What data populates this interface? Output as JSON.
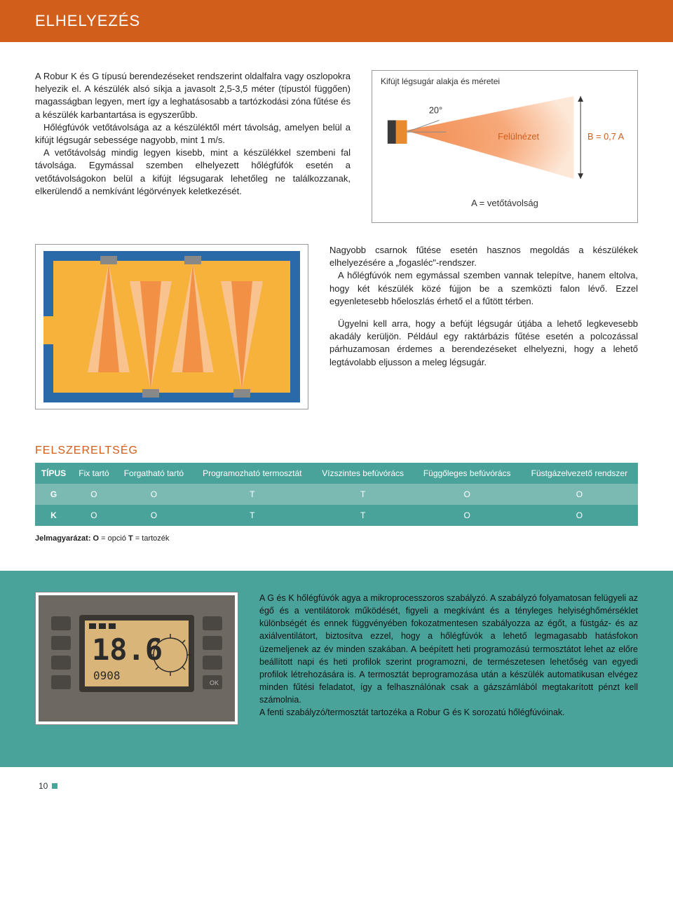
{
  "header": {
    "title": "ELHELYEZÉS"
  },
  "intro": {
    "p1": "A Robur K és G típusú berendezéseket rendszerint oldalfalra vagy oszlopokra helyezik el. A készülék alsó síkja a javasolt 2,5-3,5 méter (típustól függően) magasságban legyen, mert így a leghatásosabb a tartózkodási zóna fűtése és a készülék karbantartása is egyszerűbb.",
    "p2": "Hőlégfúvók vetőtávolsága az a készüléktől mért távolság, amelyen belül a kifújt légsugár sebessége nagyobb, mint 1 m/s.",
    "p3": "A vetőtávolság mindig legyen kisebb, mint a készülékkel szembeni fal távolsága. Egymással szemben elhelyezett hőlégfúfók esetén a vetőtávolságokon belül a kifújt légsugarak lehetőleg ne találkozzanak, elkerülendő a nemkívánt légörvények keletkezését."
  },
  "fig1": {
    "title": "Kifújt légsugár alakja és méretei",
    "angle": "20°",
    "topview": "Felülnézet",
    "dim": "B = 0,7 A",
    "caption": "A = vetőtávolság",
    "beam_color": "#f7a97a",
    "beam_inner": "#f18c4f",
    "unit_color": "#e88b2f",
    "unit_dark": "#3a3a3a"
  },
  "fig2": {
    "wall_color": "#2a6aa8",
    "floor_color": "#f6b23a",
    "beam_outer": "#f9c38f",
    "beam_inner": "#f29146"
  },
  "mid": {
    "p1": "Nagyobb csarnok fűtése esetén hasznos megoldás a készülékek elhelyezésére a „fogasléc\"-rendszer.",
    "p2": "A hőlégfúvók nem egymással szemben vannak telepítve, hanem eltolva, hogy két készülék közé fújjon be a szemközti falon lévő. Ezzel egyenletesebb hőeloszlás érhető el a fűtött térben.",
    "p3": "Ügyelni kell arra, hogy a befújt légsugár útjába a lehető legkevesebb akadály kerüljön. Például egy raktárbázis fűtése esetén a polcozással párhuzamosan érdemes a berendezéseket elhelyezni, hogy a lehető legtávolabb eljusson a meleg légsugár."
  },
  "equip": {
    "title": "FELSZERELTSÉG",
    "head": [
      "TÍPUS",
      "Fix tartó",
      "Forgatható tartó",
      "Programozható termosztát",
      "Vízszintes befúvórács",
      "Függőleges befúvórács",
      "Füstgázelvezető rendszer"
    ],
    "rows": [
      {
        "cls": "g",
        "cells": [
          "G",
          "O",
          "O",
          "T",
          "T",
          "O",
          "O"
        ]
      },
      {
        "cls": "k",
        "cells": [
          "K",
          "O",
          "O",
          "T",
          "T",
          "O",
          "O"
        ]
      }
    ],
    "legend_prefix": "Jelmagyarázat: ",
    "legend_o": "O",
    "legend_o_txt": " = opció ",
    "legend_t": "T",
    "legend_t_txt": " = tartozék"
  },
  "controller": {
    "text": "A G és K hőlégfúvók agya a mikroprocesszoros szabályzó. A szabályzó folyamatosan felügyeli az égő és a ventilátorok működését, figyeli a megkívánt és a tényleges helyiséghőmérséklet különbségét és ennek függvényében fokozatmentesen szabályozza az égőt, a füstgáz- és az axiálventilátort, biztosítva ezzel, hogy a hőlégfúvók a lehető legmagasabb hatásfokon üzemeljenek az év minden szakában. A beépített heti programozású termosztátot lehet az előre beállított napi és heti profilok szerint programozni, de természetesen lehetőség van egyedi profilok létrehozására is. A termosztát beprogramozása után a készülék automatikusan elvégez minden fűtési feladatot, így a felhasználónak csak a gázszámlából megtakarított pénzt kell számolnia.\nA fenti szabályzó/termosztát tartozéka a Robur G és K sorozatú hőlégfúvóinak.",
    "panel_bg": "#6d6962",
    "lcd_bg": "#d9b57a",
    "lcd_num": "18.6",
    "lcd_sub": "0908"
  },
  "page_number": "10"
}
